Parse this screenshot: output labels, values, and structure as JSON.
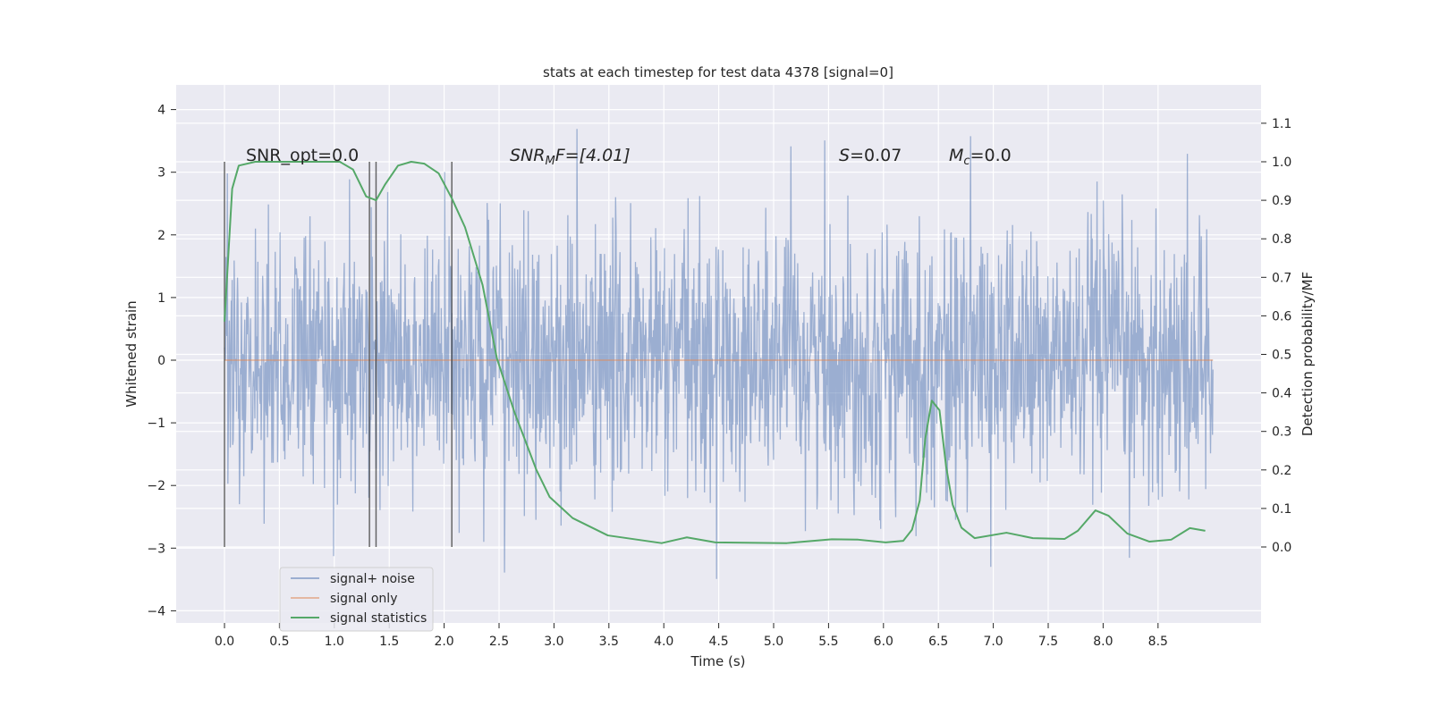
{
  "chart_data": {
    "type": "line",
    "title": "stats at each timestep for test data 4378 [signal=0]",
    "xlabel": "Time (s)",
    "ylabel": "Whitened strain",
    "ylabel_right": "Detection probability/MF",
    "xlim": [
      -0.44,
      9.44
    ],
    "ylim": [
      -4.15,
      4.4
    ],
    "ylim_right": [
      -0.2,
      1.2
    ],
    "xticks": [
      "0.0",
      "0.5",
      "1.0",
      "1.5",
      "2.0",
      "2.5",
      "3.0",
      "3.5",
      "4.0",
      "4.5",
      "5.0",
      "5.5",
      "6.0",
      "6.5",
      "7.0",
      "7.5",
      "8.0",
      "8.5"
    ],
    "yticks": [
      "4",
      "3",
      "2",
      "1",
      "0",
      "−1",
      "−2",
      "−3",
      "−4"
    ],
    "yticks_right": [
      "1.1",
      "1.0",
      "0.9",
      "0.8",
      "0.7",
      "0.6",
      "0.5",
      "0.4",
      "0.3",
      "0.2",
      "0.1",
      "0.0"
    ],
    "grid": true,
    "legend": {
      "placement": "lower-left",
      "entries": [
        "signal+ noise",
        "signal only",
        "signal statistics"
      ]
    },
    "annotations": {
      "snr_opt": "SNR_opt=0.0",
      "snr_mf_main": "SNR",
      "snr_mf_sub": "M",
      "snr_mf_rest": "F=[4.01]",
      "s_sym": "S",
      "s_val": "=0.07",
      "mc_sym": "M",
      "mc_sub": "c",
      "mc_val": "=0.0"
    },
    "series": [
      {
        "name": "signal+ noise",
        "axis": "left",
        "color": "#4c72b0",
        "kind": "noise",
        "t_range": [
          0,
          9.0
        ],
        "std": 1.0,
        "n_samples": 2048
      },
      {
        "name": "signal only",
        "axis": "left",
        "color": "#dd8452",
        "x": [
          0,
          9.0
        ],
        "y": [
          0,
          0
        ]
      },
      {
        "name": "signal statistics",
        "axis": "right",
        "color": "#55a868",
        "x": [
          0,
          0.07,
          0.13,
          0.28,
          1.05,
          1.17,
          1.29,
          1.38,
          1.46,
          1.58,
          1.7,
          1.82,
          1.95,
          2.07,
          2.19,
          2.35,
          2.48,
          2.64,
          2.84,
          2.96,
          3.17,
          3.49,
          3.98,
          4.21,
          4.47,
          5.12,
          5.53,
          5.77,
          6.02,
          6.18,
          6.26,
          6.33,
          6.38,
          6.44,
          6.51,
          6.57,
          6.63,
          6.71,
          6.83,
          7.12,
          7.36,
          7.65,
          7.77,
          7.93,
          8.05,
          8.22,
          8.42,
          8.62,
          8.79,
          8.93
        ],
        "y": [
          0.585,
          0.93,
          0.99,
          1.0,
          1.0,
          0.98,
          0.91,
          0.9,
          0.94,
          0.99,
          1.0,
          0.995,
          0.97,
          0.905,
          0.83,
          0.68,
          0.49,
          0.35,
          0.2,
          0.13,
          0.075,
          0.03,
          0.01,
          0.025,
          0.012,
          0.01,
          0.02,
          0.019,
          0.012,
          0.016,
          0.045,
          0.12,
          0.28,
          0.38,
          0.355,
          0.21,
          0.11,
          0.05,
          0.023,
          0.037,
          0.023,
          0.021,
          0.042,
          0.095,
          0.081,
          0.035,
          0.014,
          0.019,
          0.049,
          0.042
        ]
      }
    ],
    "vlines": {
      "axis": "right",
      "x": [
        0.0,
        1.32,
        1.38,
        2.07
      ],
      "ymin": 0.0,
      "ymax": 1.0,
      "color": "#444444"
    }
  }
}
